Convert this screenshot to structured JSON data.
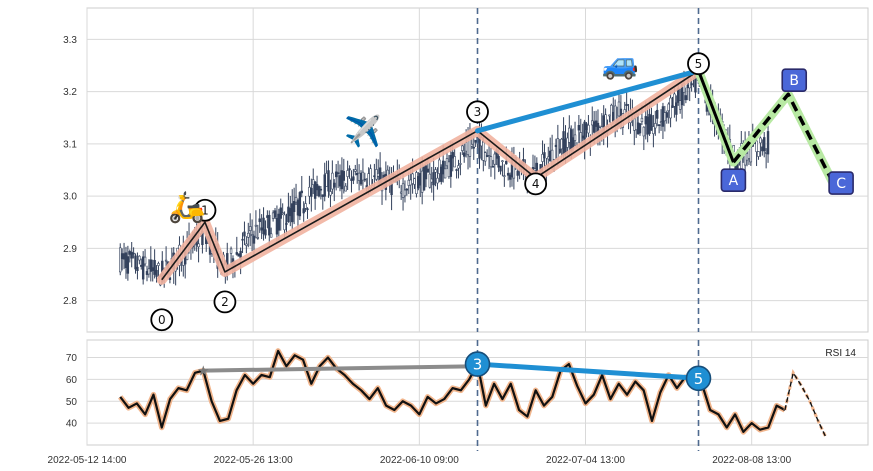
{
  "chart_data": [
    {
      "type": "candlestick",
      "panel": "price",
      "ylim": [
        2.74,
        3.36
      ],
      "yticks": [
        2.8,
        2.9,
        3.0,
        3.1,
        3.2,
        3.3
      ],
      "ytick_labels": [
        "2.8",
        "2.9",
        "3.0",
        "3.1",
        "3.2",
        "3.3"
      ],
      "grid": true,
      "wave_points": [
        {
          "label": "0",
          "x": 4.5,
          "y": 2.84
        },
        {
          "label": "1",
          "x": 7.1,
          "y": 2.95
        },
        {
          "label": "2",
          "x": 8.3,
          "y": 2.855
        },
        {
          "label": "3",
          "x": 23.5,
          "y": 3.125
        },
        {
          "label": "4",
          "x": 27.0,
          "y": 3.035
        },
        {
          "label": "5",
          "x": 36.8,
          "y": 3.24
        }
      ],
      "correction_points": [
        {
          "label": "A",
          "x": 38.9,
          "y": 3.065
        },
        {
          "label": "B",
          "x": 42.2,
          "y": 3.195
        },
        {
          "label": "C",
          "x": 44.9,
          "y": 3.025
        }
      ],
      "trendline": {
        "from_wave": "3",
        "to_wave": "5"
      },
      "vertical_markers": [
        23.5,
        36.8
      ],
      "icons": [
        {
          "name": "scooter",
          "glyph": "🛵",
          "x": 6.0,
          "y": 2.96
        },
        {
          "name": "airplane",
          "glyph": "✈️",
          "x": 16.6,
          "y": 3.105
        },
        {
          "name": "car",
          "glyph": "🚙",
          "x": 32.1,
          "y": 3.235
        }
      ],
      "series_segments": [
        {
          "x_start": 2.0,
          "x_end": 4.2,
          "level": 2.88
        },
        {
          "x_start": 4.2,
          "x_end": 7.0,
          "level": 2.9
        },
        {
          "x_start": 7.0,
          "x_end": 10.5,
          "level": 2.92
        },
        {
          "x_start": 10.5,
          "x_end": 13.0,
          "level": 2.97
        },
        {
          "x_start": 13.0,
          "x_end": 19.0,
          "level": 3.02
        },
        {
          "x_start": 19.0,
          "x_end": 23.5,
          "level": 3.05
        },
        {
          "x_start": 23.5,
          "x_end": 27.0,
          "level": 3.06
        },
        {
          "x_start": 27.0,
          "x_end": 30.5,
          "level": 3.12
        },
        {
          "x_start": 30.5,
          "x_end": 36.8,
          "level": 3.17
        },
        {
          "x_start": 36.8,
          "x_end": 39.0,
          "level": 3.15
        },
        {
          "x_start": 39.0,
          "x_end": 41.0,
          "level": 3.08
        }
      ]
    },
    {
      "type": "line",
      "panel": "rsi",
      "title": "RSI 14",
      "ylim": [
        30,
        78
      ],
      "yticks": [
        40,
        50,
        60,
        70
      ],
      "ytick_labels": [
        "40",
        "50",
        "60",
        "70"
      ],
      "grid": true,
      "x_range": [
        0,
        47
      ],
      "series": [
        {
          "x": [
            2.0,
            2.5,
            3.0,
            3.5,
            4.0,
            4.5,
            5.0,
            5.5,
            6.0,
            6.5,
            7.0,
            7.5,
            8.0,
            8.5,
            9.0,
            9.5,
            10.0,
            10.5,
            11.0,
            11.5,
            12.0,
            12.5,
            13.0,
            13.5,
            14.0,
            14.5,
            15.0,
            15.5,
            16.0,
            16.5,
            17.0,
            17.5,
            18.0,
            18.5,
            19.0,
            19.5,
            20.0,
            20.5,
            21.0,
            21.5,
            22.0,
            22.5,
            23.0,
            23.5,
            24.0,
            24.5,
            25.0,
            25.5,
            26.0,
            26.5,
            27.0,
            27.5,
            28.0,
            28.5,
            29.0,
            29.5,
            30.0,
            30.5,
            31.0,
            31.5,
            32.0,
            32.5,
            33.0,
            33.5,
            34.0,
            34.5,
            35.0,
            35.5,
            36.0,
            36.5,
            37.0,
            37.5,
            38.0,
            38.5,
            39.0,
            39.5,
            40.0,
            40.5,
            41.0,
            41.5,
            42.0
          ],
          "values": [
            52,
            47,
            49,
            44,
            53,
            38,
            51,
            56,
            55,
            63,
            64,
            50,
            41,
            42,
            55,
            62,
            58,
            62,
            61,
            73,
            66,
            71,
            69,
            58,
            66,
            70,
            65,
            62,
            58,
            55,
            51,
            56,
            48,
            46,
            50,
            48,
            44,
            52,
            49,
            51,
            56,
            55,
            60,
            67,
            48,
            58,
            51,
            58,
            46,
            43,
            55,
            48,
            52,
            64,
            67,
            57,
            49,
            53,
            62,
            51,
            58,
            53,
            59,
            55,
            41,
            54,
            62,
            56,
            61,
            60,
            58,
            46,
            44,
            38,
            44,
            36,
            40,
            37,
            38,
            48,
            46
          ]
        },
        {
          "x": [
            42.0,
            42.5,
            43.0,
            43.5,
            44.0,
            44.5
          ],
          "values": [
            46,
            63,
            57,
            50,
            41,
            33
          ]
        }
      ],
      "divergence_lines": [
        {
          "x_start": 7.0,
          "y_start": 64,
          "x_end": 23.5,
          "y_end": 66
        },
        {
          "x_start": 23.5,
          "y_start": 67,
          "x_end": 36.8,
          "y_end": 60.5
        }
      ],
      "markers": [
        {
          "label": "3",
          "x": 23.5,
          "y": 67
        },
        {
          "label": "5",
          "x": 36.8,
          "y": 60.5
        }
      ]
    }
  ],
  "x_axis": {
    "range": [
      0,
      47
    ],
    "ticks": [
      0,
      10,
      20,
      30,
      40
    ],
    "tick_labels": [
      "2022-05-12 14:00",
      "2022-05-26 13:00",
      "2022-06-10 09:00",
      "2022-07-04 13:00",
      "2022-08-08 13:00"
    ]
  },
  "colors": {
    "impulse_band": "#f1b3a0",
    "impulse_line": "#1b1b1b",
    "trendline": "#1f8fd3",
    "correction_band": "#b8e9a3",
    "correction_line": "#000000",
    "correction_box": "#4a67d8",
    "correction_box_border": "#2a2a6a",
    "candle": "#33415c",
    "vline": "#4f6a8f",
    "grid": "#d9d9d9",
    "rsi_line": "#111111",
    "rsi_halo": "#f1b58c",
    "rsi_divergence_1": "#8c8c8c",
    "rsi_divergence_2": "#1f8fd3",
    "rsi_marker": "#1f8fd3"
  }
}
